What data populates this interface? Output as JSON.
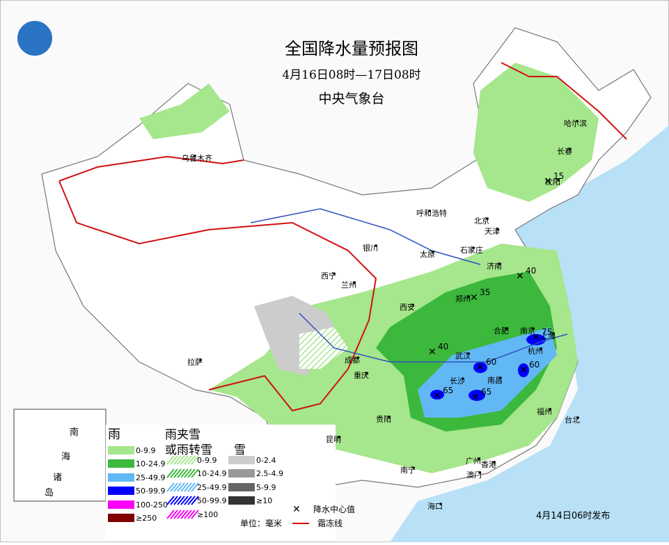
{
  "header": {
    "title": "全国降水量预报图",
    "period": "4月16日08时—17日08时",
    "issuer": "中央气象台"
  },
  "cities": [
    "乌鲁木齐",
    "哈尔滨",
    "长春",
    "沈阳",
    "呼和浩特",
    "北京",
    "天津",
    "石家庄",
    "太原",
    "银川",
    "西宁",
    "兰州",
    "济南",
    "郑州",
    "西安",
    "合肥",
    "南京",
    "上海",
    "武汉",
    "杭州",
    "成都",
    "拉萨",
    "重庆",
    "长沙",
    "南昌",
    "贵阳",
    "福州",
    "台北",
    "昆明",
    "广州",
    "香港",
    "南宁",
    "澳门",
    "海口"
  ],
  "centers": [
    15,
    40,
    35,
    40,
    60,
    75,
    60,
    65,
    65
  ],
  "inset": [
    "南",
    "海",
    "诸",
    "岛"
  ],
  "legend": {
    "rain": {
      "heading": "雨",
      "items": [
        {
          "label": "0-9.9",
          "color": "#a6e68c"
        },
        {
          "label": "10-24.9",
          "color": "#3cb83c"
        },
        {
          "label": "25-49.9",
          "color": "#62b8f5"
        },
        {
          "label": "50-99.9",
          "color": "#0000fe"
        },
        {
          "label": "100-250",
          "color": "#fa00fa"
        },
        {
          "label": "≥250",
          "color": "#800000"
        }
      ]
    },
    "sleet": {
      "heading": [
        "雨夹雪",
        "或雨转雪"
      ],
      "items": [
        {
          "label": "0-9.9",
          "color": "#a6e68c"
        },
        {
          "label": "10-24.9",
          "color": "#3cb83c"
        },
        {
          "label": "25-49.9",
          "color": "#62b8f5"
        },
        {
          "label": "50-99.9",
          "color": "#0000fe"
        },
        {
          "label": "≥100",
          "color": "#fa00fa"
        }
      ]
    },
    "snow": {
      "heading": "雪",
      "items": [
        {
          "label": "0-2.4",
          "color": "#cccccc"
        },
        {
          "label": "2.5-4.9",
          "color": "#999999"
        },
        {
          "label": "5-9.9",
          "color": "#666666"
        },
        {
          "label": "≥10",
          "color": "#333333"
        }
      ]
    },
    "center_symbol": "降水中心值",
    "frost_line": "霜冻线",
    "unit": "单位：毫米"
  },
  "footer": "4月14日06时发布"
}
